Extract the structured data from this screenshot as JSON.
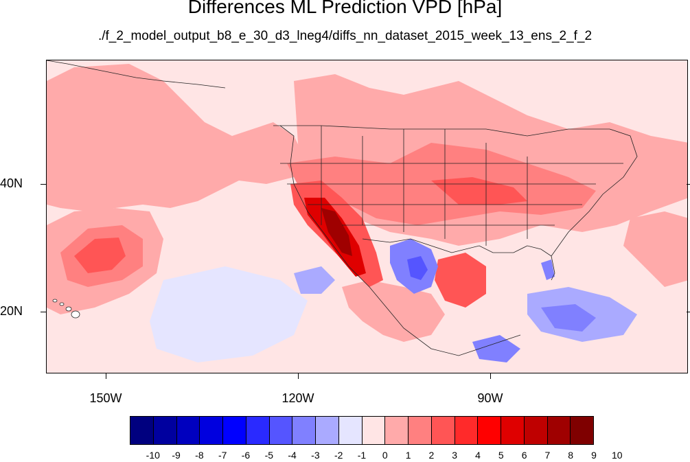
{
  "title": "Differences ML Prediction VPD [hPa]",
  "subtitle": "./f_2_model_output_b8_e_30_d3_lneg4/diffs_nn_dataset_2015_week_13_ens_2_f_2",
  "map": {
    "x_ticks": [
      "150W",
      "120W",
      "90W"
    ],
    "y_ticks": [
      "40N",
      "20N"
    ],
    "lon_range": [
      -159,
      -59
    ],
    "lat_range": [
      11,
      59
    ]
  },
  "colorbar": {
    "labels": [
      "-10",
      "-9",
      "-8",
      "-7",
      "-6",
      "-5",
      "-4",
      "-3",
      "-2",
      "-1",
      "0",
      "1",
      "2",
      "3",
      "4",
      "5",
      "6",
      "7",
      "8",
      "9",
      "10"
    ],
    "colors": [
      "#00007f",
      "#00009f",
      "#0000bf",
      "#0000df",
      "#0000ff",
      "#2a2aff",
      "#5555ff",
      "#8080ff",
      "#aaaaff",
      "#e5e5ff",
      "#ffe5e5",
      "#ffaaaa",
      "#ff8080",
      "#ff5555",
      "#ff2a2a",
      "#ff0000",
      "#df0000",
      "#bf0000",
      "#9f0000",
      "#7f0000"
    ]
  }
}
